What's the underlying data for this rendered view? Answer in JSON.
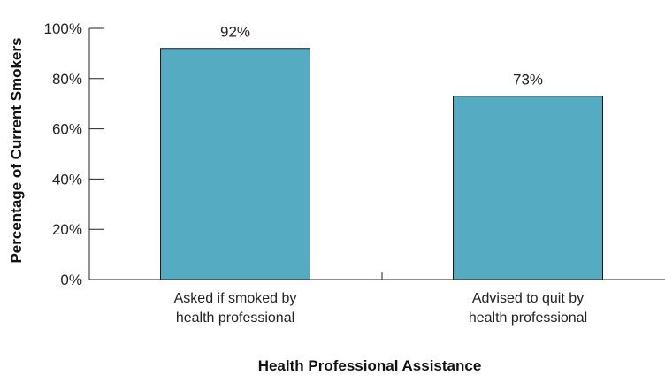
{
  "chart_data": {
    "type": "bar",
    "categories": [
      [
        "Asked if smoked by",
        "health professional"
      ],
      [
        "Advised to quit by",
        "health professional"
      ]
    ],
    "values": [
      92,
      73
    ],
    "data_labels": [
      "92%",
      "73%"
    ],
    "xlabel": "Health Professional Assistance",
    "ylabel": "Percentage of Current Smokers",
    "ylim": [
      0,
      100
    ],
    "yticks": [
      0,
      20,
      40,
      60,
      80,
      100
    ],
    "ytick_labels": [
      "0%",
      "20%",
      "40%",
      "60%",
      "80%",
      "100%"
    ],
    "grid": false,
    "legend": "none",
    "bar_color": "#55abc1"
  }
}
